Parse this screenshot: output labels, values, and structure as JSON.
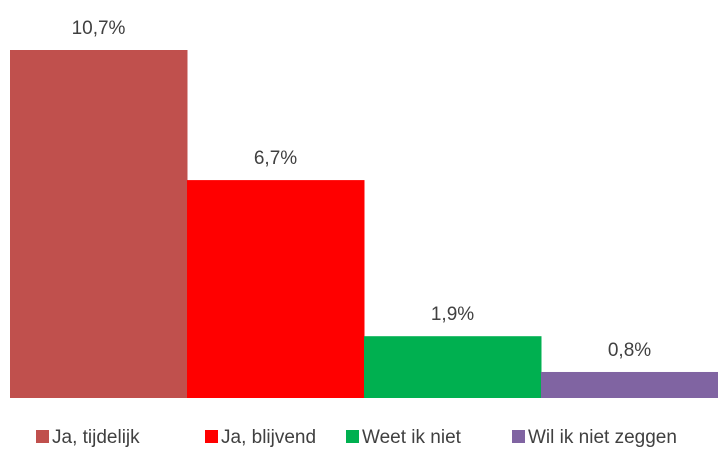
{
  "chart_data": {
    "type": "bar",
    "categories": [
      "Ja, tijdelijk",
      "Ja, blijvend",
      "Weet ik niet",
      "Wil ik niet zeggen"
    ],
    "values": [
      10.7,
      6.7,
      1.9,
      0.8
    ],
    "data_labels": [
      "10,7%",
      "6,7%",
      "1,9%",
      "0,8%"
    ],
    "colors": [
      "#c0504d",
      "#ff0000",
      "#00b050",
      "#8064a2"
    ],
    "ylim": [
      0,
      10.7
    ],
    "grid": false,
    "legend": {
      "position": "bottom",
      "entries": [
        "Ja, tijdelijk",
        "Ja, blijvend",
        "Weet ik niet",
        "Wil ik niet zeggen"
      ]
    }
  }
}
